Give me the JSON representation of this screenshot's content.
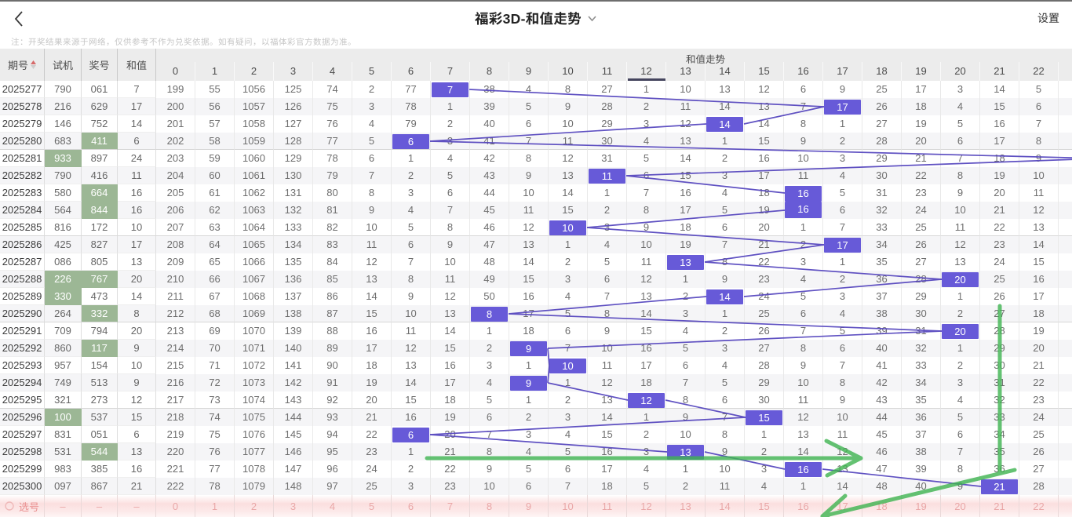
{
  "app": {
    "title": "福彩3D-和值走势",
    "settings_label": "设置"
  },
  "note": "注：开奖结果来源于网络，仅供参考不作为兑奖依据。如有疑问，以福体彩官方数据为准。",
  "table": {
    "left_columns": [
      "期号",
      "试机",
      "奖号",
      "和值"
    ],
    "span_header": "和值走势",
    "value_columns": [
      0,
      1,
      2,
      3,
      4,
      5,
      6,
      7,
      8,
      9,
      10,
      11,
      12,
      13,
      14,
      15,
      16,
      17,
      18,
      19,
      20,
      21,
      22
    ],
    "underlined_column": 12,
    "rows": [
      {
        "issue": "2025277",
        "test": "790",
        "prize": "061",
        "sum": 7,
        "miss": [
          199,
          55,
          1056,
          125,
          74,
          2,
          77,
          7,
          38,
          4,
          8,
          27,
          1,
          10,
          13,
          12,
          6,
          9,
          25,
          17,
          3,
          14,
          5
        ]
      },
      {
        "issue": "2025278",
        "test": "216",
        "prize": "629",
        "sum": 17,
        "miss": [
          200,
          56,
          1057,
          126,
          75,
          3,
          78,
          1,
          39,
          5,
          9,
          28,
          2,
          11,
          14,
          13,
          7,
          17,
          26,
          18,
          4,
          15,
          6
        ]
      },
      {
        "issue": "2025279",
        "test": "146",
        "prize": "752",
        "sum": 14,
        "miss": [
          201,
          57,
          1058,
          127,
          76,
          4,
          79,
          2,
          40,
          6,
          10,
          29,
          3,
          12,
          14,
          14,
          8,
          1,
          27,
          19,
          5,
          16,
          7
        ]
      },
      {
        "issue": "2025280",
        "test": "683",
        "prize": "411",
        "sum": 6,
        "miss": [
          202,
          58,
          1059,
          128,
          77,
          5,
          6,
          3,
          41,
          7,
          11,
          30,
          4,
          13,
          1,
          15,
          9,
          2,
          28,
          20,
          6,
          17,
          8
        ]
      },
      {
        "issue": "2025281",
        "test": "933",
        "prize": "897",
        "sum": 24,
        "miss": [
          203,
          59,
          1060,
          129,
          78,
          6,
          1,
          4,
          42,
          8,
          12,
          31,
          5,
          14,
          2,
          16,
          10,
          3,
          29,
          21,
          7,
          18,
          9
        ]
      },
      {
        "issue": "2025282",
        "test": "790",
        "prize": "416",
        "sum": 11,
        "miss": [
          204,
          60,
          1061,
          130,
          79,
          7,
          2,
          5,
          43,
          9,
          13,
          11,
          6,
          15,
          3,
          17,
          11,
          4,
          30,
          22,
          8,
          19,
          10
        ]
      },
      {
        "issue": "2025283",
        "test": "580",
        "prize": "664",
        "sum": 16,
        "miss": [
          205,
          61,
          1062,
          131,
          80,
          8,
          3,
          6,
          44,
          10,
          14,
          1,
          7,
          16,
          4,
          18,
          16,
          5,
          31,
          23,
          9,
          20,
          11
        ]
      },
      {
        "issue": "2025284",
        "test": "564",
        "prize": "844",
        "sum": 16,
        "miss": [
          206,
          62,
          1063,
          132,
          81,
          9,
          4,
          7,
          45,
          11,
          15,
          2,
          8,
          17,
          5,
          19,
          16,
          6,
          32,
          24,
          10,
          21,
          12
        ]
      },
      {
        "issue": "2025285",
        "test": "816",
        "prize": "172",
        "sum": 10,
        "miss": [
          207,
          63,
          1064,
          133,
          82,
          10,
          5,
          8,
          46,
          12,
          10,
          3,
          9,
          18,
          6,
          20,
          1,
          7,
          33,
          25,
          11,
          22,
          13
        ]
      },
      {
        "issue": "2025286",
        "test": "425",
        "prize": "827",
        "sum": 17,
        "miss": [
          208,
          64,
          1065,
          134,
          83,
          11,
          6,
          9,
          47,
          13,
          1,
          4,
          10,
          19,
          7,
          21,
          2,
          17,
          34,
          26,
          12,
          23,
          14
        ]
      },
      {
        "issue": "2025287",
        "test": "086",
        "prize": "805",
        "sum": 13,
        "miss": [
          209,
          65,
          1066,
          135,
          84,
          12,
          7,
          10,
          48,
          14,
          2,
          5,
          11,
          13,
          8,
          22,
          3,
          1,
          35,
          27,
          13,
          24,
          15
        ]
      },
      {
        "issue": "2025288",
        "test": "226",
        "prize": "767",
        "sum": 20,
        "miss": [
          210,
          66,
          1067,
          136,
          85,
          13,
          8,
          11,
          49,
          15,
          3,
          6,
          12,
          1,
          9,
          23,
          4,
          2,
          36,
          28,
          20,
          25,
          16
        ]
      },
      {
        "issue": "2025289",
        "test": "330",
        "prize": "473",
        "sum": 14,
        "miss": [
          211,
          67,
          1068,
          137,
          86,
          14,
          9,
          12,
          50,
          16,
          4,
          7,
          13,
          2,
          14,
          24,
          5,
          3,
          37,
          29,
          1,
          26,
          17
        ]
      },
      {
        "issue": "2025290",
        "test": "264",
        "prize": "332",
        "sum": 8,
        "miss": [
          212,
          68,
          1069,
          138,
          87,
          15,
          10,
          13,
          8,
          17,
          5,
          8,
          14,
          3,
          1,
          25,
          6,
          4,
          38,
          30,
          2,
          27,
          18
        ]
      },
      {
        "issue": "2025291",
        "test": "709",
        "prize": "794",
        "sum": 20,
        "miss": [
          213,
          69,
          1070,
          139,
          88,
          16,
          11,
          14,
          1,
          18,
          6,
          9,
          15,
          4,
          2,
          26,
          7,
          5,
          39,
          31,
          20,
          28,
          19
        ]
      },
      {
        "issue": "2025292",
        "test": "860",
        "prize": "117",
        "sum": 9,
        "miss": [
          214,
          70,
          1071,
          140,
          89,
          17,
          12,
          15,
          2,
          9,
          7,
          10,
          16,
          5,
          3,
          27,
          8,
          6,
          40,
          32,
          1,
          29,
          20
        ]
      },
      {
        "issue": "2025293",
        "test": "957",
        "prize": "154",
        "sum": 10,
        "miss": [
          215,
          71,
          1072,
          141,
          90,
          18,
          13,
          16,
          3,
          1,
          10,
          11,
          17,
          6,
          4,
          28,
          9,
          7,
          41,
          33,
          2,
          30,
          21
        ]
      },
      {
        "issue": "2025294",
        "test": "749",
        "prize": "513",
        "sum": 9,
        "miss": [
          216,
          72,
          1073,
          142,
          91,
          19,
          14,
          17,
          4,
          9,
          1,
          12,
          18,
          7,
          5,
          29,
          10,
          8,
          42,
          34,
          3,
          31,
          22
        ]
      },
      {
        "issue": "2025295",
        "test": "321",
        "prize": "273",
        "sum": 12,
        "miss": [
          217,
          73,
          1074,
          143,
          92,
          20,
          15,
          18,
          5,
          1,
          2,
          13,
          12,
          8,
          6,
          30,
          11,
          9,
          43,
          35,
          4,
          32,
          23
        ]
      },
      {
        "issue": "2025296",
        "test": "100",
        "prize": "537",
        "sum": 15,
        "miss": [
          218,
          74,
          1075,
          144,
          93,
          21,
          16,
          19,
          6,
          2,
          3,
          14,
          1,
          9,
          7,
          15,
          12,
          10,
          44,
          36,
          5,
          33,
          24
        ]
      },
      {
        "issue": "2025297",
        "test": "831",
        "prize": "051",
        "sum": 6,
        "miss": [
          219,
          75,
          1076,
          145,
          94,
          22,
          6,
          20,
          7,
          3,
          4,
          15,
          2,
          10,
          8,
          1,
          13,
          11,
          45,
          37,
          6,
          34,
          25
        ]
      },
      {
        "issue": "2025298",
        "test": "531",
        "prize": "544",
        "sum": 13,
        "miss": [
          220,
          76,
          1077,
          146,
          95,
          23,
          1,
          21,
          8,
          4,
          5,
          16,
          3,
          13,
          9,
          2,
          14,
          12,
          46,
          38,
          7,
          35,
          26
        ]
      },
      {
        "issue": "2025299",
        "test": "983",
        "prize": "385",
        "sum": 16,
        "miss": [
          221,
          77,
          1078,
          147,
          96,
          24,
          2,
          22,
          9,
          5,
          6,
          17,
          4,
          1,
          10,
          3,
          16,
          13,
          47,
          39,
          8,
          36,
          27
        ]
      },
      {
        "issue": "2025300",
        "test": "097",
        "prize": "867",
        "sum": 21,
        "miss": [
          222,
          78,
          1079,
          148,
          97,
          25,
          3,
          23,
          10,
          6,
          7,
          18,
          5,
          2,
          11,
          4,
          1,
          14,
          48,
          40,
          9,
          21,
          28
        ]
      }
    ]
  },
  "select_row": {
    "label": "选号",
    "dash": "–",
    "numbers": [
      0,
      1,
      2,
      3,
      4,
      5,
      6,
      7,
      8,
      9,
      10,
      11,
      12,
      13,
      14,
      15,
      16,
      17,
      18,
      19,
      20,
      21,
      22
    ]
  },
  "annotations": {
    "color": "#3eb450",
    "horizontal_arrow": {
      "shaft": [
        [
          544,
          584
        ],
        [
          1097,
          584
        ]
      ],
      "barbs": [
        [
          [
            1053,
            562
          ],
          [
            1097,
            584
          ]
        ],
        [
          [
            1054,
            606
          ],
          [
            1097,
            584
          ]
        ]
      ]
    },
    "bent_arrow": {
      "segments": [
        [
          [
            1274,
            390
          ],
          [
            1274,
            603
          ]
        ],
        [
          [
            1293,
            599
          ],
          [
            1048,
            658
          ]
        ],
        [
          [
            1077,
            632
          ],
          [
            1048,
            658
          ]
        ],
        [
          [
            1048,
            658
          ],
          [
            1080,
            670
          ]
        ]
      ]
    }
  },
  "colors": {
    "hit_cell": "#675ad8",
    "trend_line": "#5748bf",
    "green_cell": "#9cb795",
    "annotation_green": "#3eb450",
    "select_row_pink": "#eba3a3",
    "select_label_red": "#e98585",
    "sort_caret_red": "#d66a6a"
  }
}
